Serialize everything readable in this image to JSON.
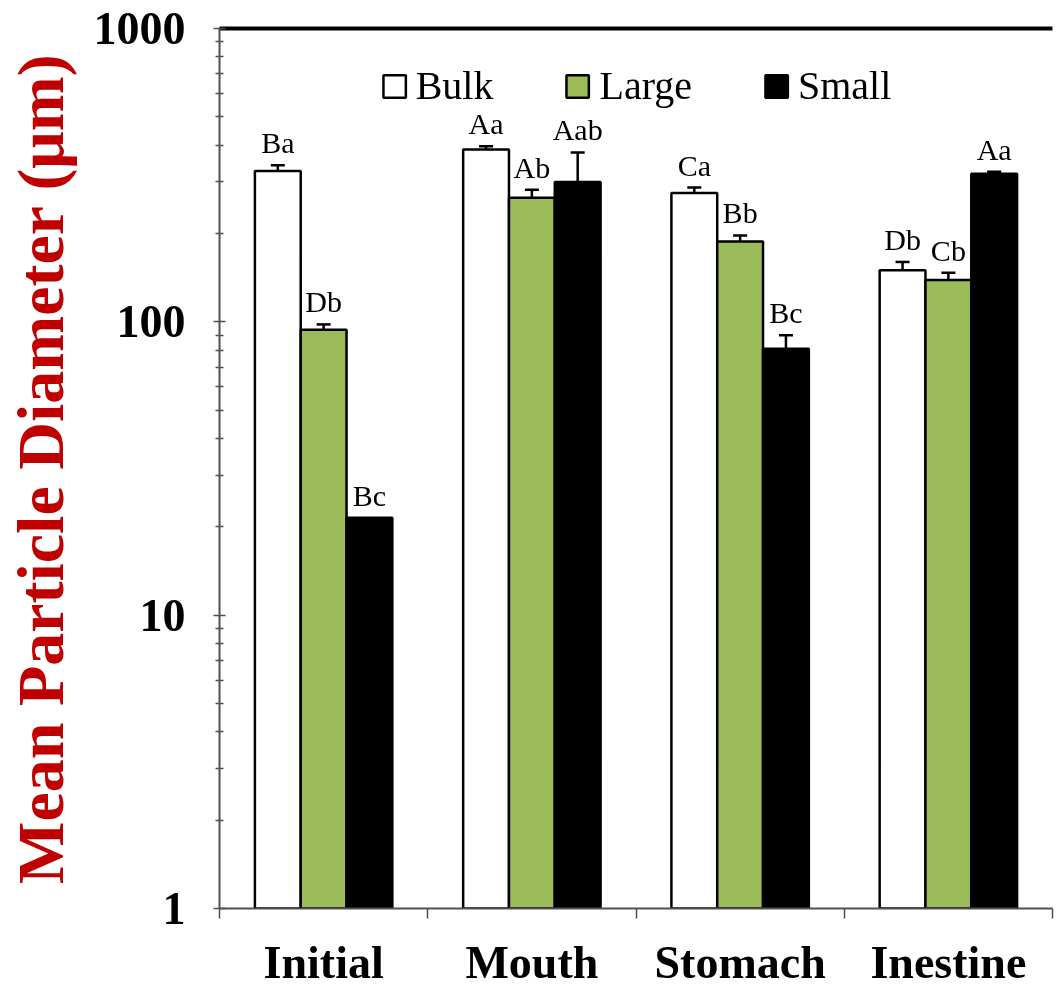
{
  "chart_data": {
    "type": "bar",
    "categories": [
      "Initial",
      "Mouth",
      "Stomach",
      "Inestine"
    ],
    "ylabel": "Mean Particle Diameter (μm)",
    "log": true,
    "ylim": [
      1,
      1000
    ],
    "yticks": [
      1,
      10,
      100,
      1000
    ],
    "legend": "top",
    "series": [
      {
        "name": "Bulk",
        "color": "#ffffff",
        "values": [
          327,
          387,
          275,
          150
        ],
        "errors": [
          15,
          10,
          12,
          10
        ],
        "value_labels": [
          "Ba",
          "Aa",
          "Ca",
          "Db"
        ]
      },
      {
        "name": "Large",
        "color": "#9bbb59",
        "values": [
          94,
          265,
          188,
          139
        ],
        "errors": [
          4,
          17,
          9,
          8
        ],
        "value_labels": [
          "Db",
          "Ab",
          "Bb",
          "Cb"
        ]
      },
      {
        "name": "Small",
        "color": "#000000",
        "values": [
          21.5,
          300,
          81,
          320
        ],
        "errors": [
          null,
          78,
          9,
          5
        ],
        "value_labels": [
          "Bc",
          "Aab",
          "Bc",
          "Aa"
        ]
      }
    ]
  }
}
